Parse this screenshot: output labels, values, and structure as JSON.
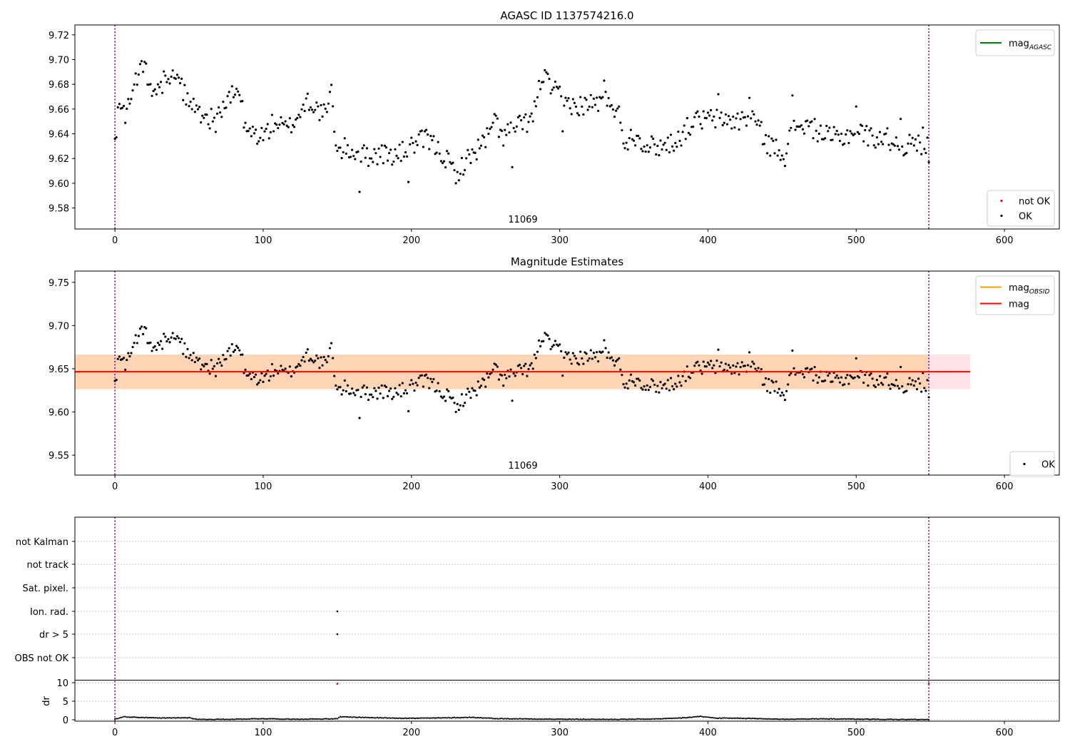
{
  "chart_data": [
    {
      "type": "scatter",
      "title": "AGASC ID 1137574216.0",
      "annotation": "11069",
      "xlim": [
        -27,
        637
      ],
      "ylim": [
        9.563,
        9.728
      ],
      "xticks": [
        0,
        100,
        200,
        300,
        400,
        500,
        600
      ],
      "yticks": [
        9.58,
        9.6,
        9.62,
        9.64,
        9.66,
        9.68,
        9.7,
        9.72
      ],
      "ytick_labels": [
        "9.58",
        "9.60",
        "9.62",
        "9.64",
        "9.66",
        "9.68",
        "9.70",
        "9.72"
      ],
      "vlines": [
        0,
        549
      ],
      "legends": [
        {
          "placement": "upper right",
          "items": [
            {
              "label": "mag",
              "sub": "AGASC",
              "kind": "line",
              "color": "#008000"
            }
          ]
        },
        {
          "placement": "lower right",
          "items": [
            {
              "label": "not OK",
              "kind": "point",
              "color": "#ff0000"
            },
            {
              "label": "OK",
              "kind": "point",
              "color": "#000000"
            }
          ]
        }
      ],
      "series": [
        {
          "name": "OK",
          "color": "#000000",
          "x_start": 0,
          "x_end": 549,
          "knots": [
            [
              0,
              9.628
            ],
            [
              2,
              9.662
            ],
            [
              8,
              9.655
            ],
            [
              14,
              9.683
            ],
            [
              20,
              9.695
            ],
            [
              26,
              9.668
            ],
            [
              36,
              9.69
            ],
            [
              42,
              9.685
            ],
            [
              50,
              9.665
            ],
            [
              60,
              9.655
            ],
            [
              68,
              9.65
            ],
            [
              74,
              9.664
            ],
            [
              84,
              9.676
            ],
            [
              88,
              9.642
            ],
            [
              100,
              9.638
            ],
            [
              108,
              9.65
            ],
            [
              116,
              9.643
            ],
            [
              124,
              9.655
            ],
            [
              130,
              9.668
            ],
            [
              136,
              9.66
            ],
            [
              142,
              9.655
            ],
            [
              146,
              9.673
            ],
            [
              150,
              9.624
            ],
            [
              155,
              9.628
            ],
            [
              170,
              9.622
            ],
            [
              180,
              9.624
            ],
            [
              190,
              9.622
            ],
            [
              200,
              9.63
            ],
            [
              210,
              9.636
            ],
            [
              220,
              9.625
            ],
            [
              230,
              9.608
            ],
            [
              240,
              9.622
            ],
            [
              250,
              9.635
            ],
            [
              256,
              9.651
            ],
            [
              262,
              9.638
            ],
            [
              268,
              9.644
            ],
            [
              276,
              9.648
            ],
            [
              282,
              9.653
            ],
            [
              288,
              9.688
            ],
            [
              296,
              9.675
            ],
            [
              304,
              9.665
            ],
            [
              314,
              9.663
            ],
            [
              324,
              9.665
            ],
            [
              334,
              9.668
            ],
            [
              340,
              9.655
            ],
            [
              344,
              9.633
            ],
            [
              350,
              9.64
            ],
            [
              360,
              9.63
            ],
            [
              370,
              9.63
            ],
            [
              380,
              9.636
            ],
            [
              390,
              9.65
            ],
            [
              400,
              9.652
            ],
            [
              410,
              9.652
            ],
            [
              420,
              9.65
            ],
            [
              430,
              9.655
            ],
            [
              440,
              9.632
            ],
            [
              450,
              9.625
            ],
            [
              460,
              9.648
            ],
            [
              470,
              9.645
            ],
            [
              480,
              9.638
            ],
            [
              490,
              9.636
            ],
            [
              500,
              9.644
            ],
            [
              510,
              9.637
            ],
            [
              520,
              9.637
            ],
            [
              530,
              9.63
            ],
            [
              540,
              9.632
            ],
            [
              549,
              9.63
            ]
          ],
          "noise": 0.0085,
          "outliers": [
            [
              165,
              9.593
            ],
            [
              198,
              9.601
            ],
            [
              230,
              9.6
            ],
            [
              253,
              9.644
            ],
            [
              268,
              9.613
            ],
            [
              302,
              9.642
            ],
            [
              313,
              9.655
            ],
            [
              330,
              9.683
            ],
            [
              407,
              9.672
            ],
            [
              428,
              9.669
            ],
            [
              452,
              9.614
            ],
            [
              457,
              9.671
            ],
            [
              500,
              9.662
            ],
            [
              530,
              9.652
            ],
            [
              545,
              9.645
            ],
            [
              549,
              9.617
            ]
          ]
        }
      ]
    },
    {
      "type": "scatter",
      "title": "Magnitude Estimates",
      "annotation": "11069",
      "xlim": [
        -27,
        637
      ],
      "ylim": [
        9.527,
        9.763
      ],
      "xticks": [
        0,
        100,
        200,
        300,
        400,
        500,
        600
      ],
      "yticks": [
        9.55,
        9.6,
        9.65,
        9.7,
        9.75
      ],
      "ytick_labels": [
        "9.55",
        "9.60",
        "9.65",
        "9.70",
        "9.75"
      ],
      "vlines": [
        0,
        549
      ],
      "mag_line": {
        "value": 9.6465,
        "color": "#ff0000",
        "x_end": 577
      },
      "mag_band": {
        "low": 9.6265,
        "high": 9.6665,
        "color": "#ffd1d8",
        "x_end": 577
      },
      "obsid_band": {
        "low": 9.6265,
        "high": 9.6665,
        "color": "#ffa500",
        "x_end": 549
      },
      "legends": [
        {
          "placement": "upper right",
          "items": [
            {
              "label": "mag",
              "sub": "OBSID",
              "kind": "line",
              "color": "#ffa500"
            },
            {
              "label": "mag",
              "kind": "line",
              "color": "#ff0000"
            }
          ]
        },
        {
          "placement": "lower right",
          "items": [
            {
              "label": "OK",
              "kind": "point",
              "color": "#000000"
            }
          ]
        }
      ],
      "series_ref": "same points as panel 1 (OK)"
    },
    {
      "type": "scatter",
      "title": "",
      "xlim": [
        -27,
        637
      ],
      "xticks": [
        0,
        100,
        200,
        300,
        400,
        500,
        600
      ],
      "vlines": [
        0,
        549
      ],
      "categories": [
        "not Kalman",
        "not track",
        "Sat. pixel.",
        "Ion. rad.",
        "dr > 5",
        "OBS not OK"
      ],
      "flag_points": [
        {
          "category": "Ion. rad.",
          "x": 150
        },
        {
          "category": "dr > 5",
          "x": 150
        }
      ],
      "dr_panel": {
        "ylabel": "dr",
        "ylim": [
          -0.5,
          10.5
        ],
        "yticks": [
          0,
          5,
          10
        ],
        "ytick_labels": [
          "0",
          "5",
          "10"
        ],
        "not_ok_points": [
          [
            150,
            9.7
          ],
          [
            549,
            9.7
          ]
        ],
        "knots": [
          [
            0,
            0.2
          ],
          [
            6,
            0.8
          ],
          [
            20,
            0.6
          ],
          [
            30,
            0.45
          ],
          [
            50,
            0.55
          ],
          [
            56,
            0.1
          ],
          [
            70,
            0.1
          ],
          [
            80,
            0.15
          ],
          [
            100,
            0.3
          ],
          [
            120,
            0.15
          ],
          [
            150,
            0.25
          ],
          [
            152,
            0.8
          ],
          [
            175,
            0.55
          ],
          [
            200,
            0.4
          ],
          [
            222,
            0.5
          ],
          [
            240,
            0.65
          ],
          [
            260,
            0.3
          ],
          [
            300,
            0.15
          ],
          [
            340,
            0.1
          ],
          [
            370,
            0.25
          ],
          [
            385,
            0.55
          ],
          [
            395,
            0.9
          ],
          [
            405,
            0.45
          ],
          [
            430,
            0.35
          ],
          [
            450,
            0.15
          ],
          [
            480,
            0.25
          ],
          [
            520,
            0.1
          ],
          [
            549,
            0.05
          ]
        ]
      }
    }
  ]
}
